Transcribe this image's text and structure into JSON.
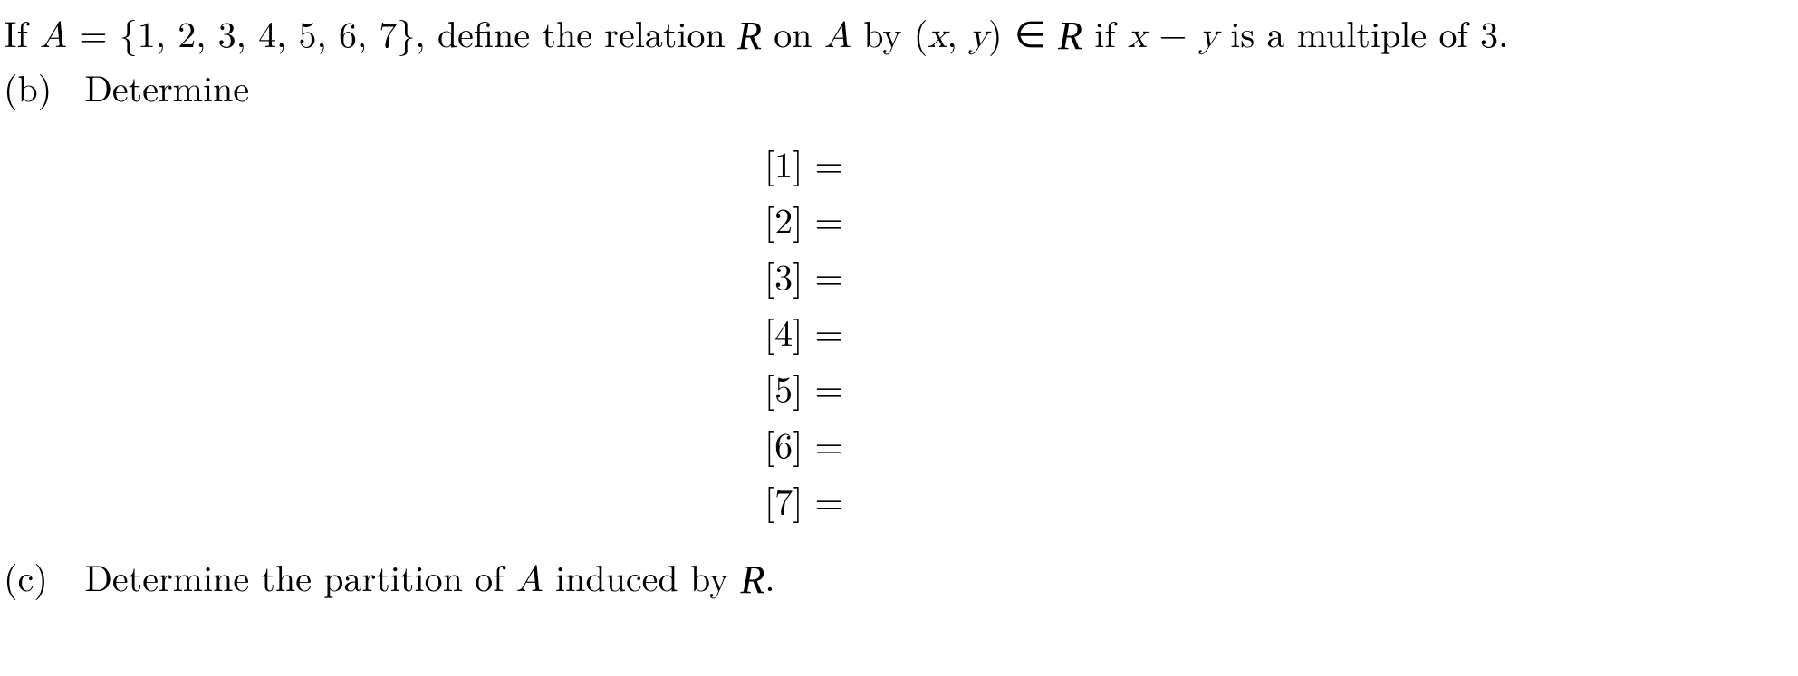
{
  "problem": {
    "line1": {
      "prefix": "If ",
      "A": "A",
      "eq": " = ",
      "set": "{1, 2, 3, 4, 5, 6, 7}",
      "mid1": ", define the relation ",
      "R": "R",
      "mid2": " on ",
      "A2": "A",
      "mid3": " by (",
      "x": "x",
      "comma": ", ",
      "y": "y",
      "mid4": ") ∈ ",
      "R2": "R",
      "mid5": " if ",
      "x2": "x",
      "minus": " − ",
      "y2": "y",
      "tail": " is a multiple of 3."
    },
    "partB": {
      "label": "(b)",
      "text": "Determine"
    },
    "equations": [
      {
        "lhs": "[1]",
        "eq": " = "
      },
      {
        "lhs": "[2]",
        "eq": " = "
      },
      {
        "lhs": "[3]",
        "eq": " = "
      },
      {
        "lhs": "[4]",
        "eq": " = "
      },
      {
        "lhs": "[5]",
        "eq": " = "
      },
      {
        "lhs": "[6]",
        "eq": " = "
      },
      {
        "lhs": "[7]",
        "eq": " = "
      }
    ],
    "partC": {
      "label": "(c)",
      "prefix": "Determine the partition of ",
      "A": "A",
      "mid": " induced by ",
      "R": "R",
      "tail": "."
    }
  },
  "style": {
    "background": "#ffffff",
    "textColor": "#000000",
    "fontSize": 40
  }
}
